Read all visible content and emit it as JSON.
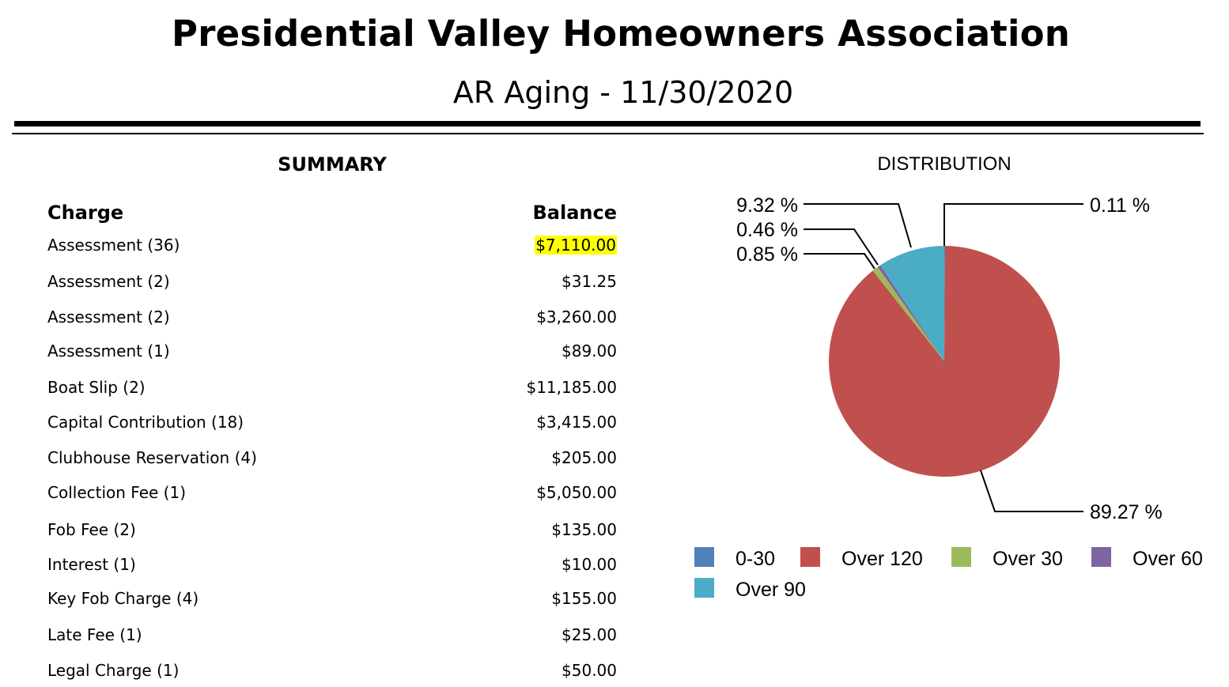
{
  "header": {
    "title": "Presidential Valley Homeowners Association",
    "subtitle": "AR Aging - 11/30/2020"
  },
  "summary": {
    "heading": "SUMMARY",
    "col_charge": "Charge",
    "col_balance": "Balance",
    "rows": [
      {
        "charge": "Assessment (36)",
        "balance": "$7,110.00",
        "highlighted": true
      },
      {
        "charge": "Assessment (2)",
        "balance": "$31.25"
      },
      {
        "charge": "Assessment (2)",
        "balance": "$3,260.00"
      },
      {
        "charge": "Assessment (1)",
        "balance": "$89.00"
      },
      {
        "charge": "Boat Slip (2)",
        "balance": "$11,185.00"
      },
      {
        "charge": "Capital Contribution (18)",
        "balance": "$3,415.00"
      },
      {
        "charge": "Clubhouse Reservation (4)",
        "balance": "$205.00"
      },
      {
        "charge": "Collection Fee (1)",
        "balance": "$5,050.00"
      },
      {
        "charge": "Fob Fee (2)",
        "balance": "$135.00"
      },
      {
        "charge": "Interest (1)",
        "balance": "$10.00"
      },
      {
        "charge": "Key Fob Charge (4)",
        "balance": "$155.00"
      },
      {
        "charge": "Late Fee (1)",
        "balance": "$25.00"
      },
      {
        "charge": "Legal Charge (1)",
        "balance": "$50.00"
      }
    ]
  },
  "distribution": {
    "heading": "DISTRIBUTION"
  },
  "chart_data": {
    "type": "pie",
    "title": "DISTRIBUTION",
    "slices": [
      {
        "name": "0-30",
        "value": 0.11,
        "label": "0.11 %",
        "color": "#4f81bd"
      },
      {
        "name": "Over 120",
        "value": 89.27,
        "label": "89.27 %",
        "color": "#c0504d"
      },
      {
        "name": "Over 30",
        "value": 0.85,
        "label": "0.85 %",
        "color": "#9bbb59"
      },
      {
        "name": "Over 60",
        "value": 0.46,
        "label": "0.46 %",
        "color": "#8064a2"
      },
      {
        "name": "Over 90",
        "value": 9.32,
        "label": "9.32 %",
        "color": "#4bacc6"
      }
    ],
    "legend": [
      "0-30",
      "Over 120",
      "Over 30",
      "Over 60",
      "Over 90"
    ],
    "legend_position": "bottom"
  }
}
